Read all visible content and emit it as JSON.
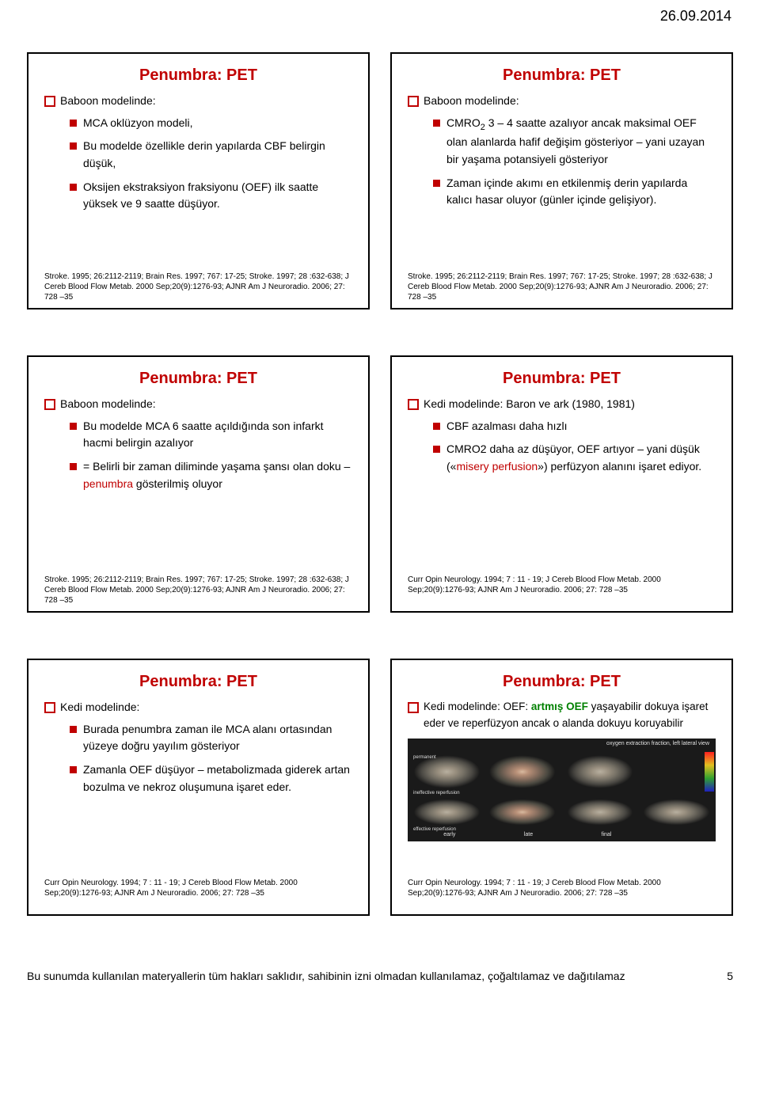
{
  "date": "26.09.2014",
  "slides": [
    {
      "title": "Penumbra: PET",
      "lvl1": "Baboon modelinde:",
      "lvl2": [
        "MCA oklüzyon modeli,",
        "Bu modelde özellikle derin yapılarda CBF belirgin düşük,",
        "Oksijen ekstraksiyon fraksiyonu (OEF) ilk saatte yüksek ve 9 saatte düşüyor."
      ],
      "ref": "Stroke. 1995; 26:2112-2119; Brain Res. 1997; 767: 17-25; Stroke. 1997; 28 :632-638; J Cereb Blood Flow Metab. 2000 Sep;20(9):1276-93; AJNR Am J Neuroradio. 2006; 27: 728 –35"
    },
    {
      "title": "Penumbra: PET",
      "lvl1": "Baboon modelinde:",
      "lvl2": [
        {
          "html": "CMRO<span class='sub'>2</span> 3 – 4 saatte azalıyor ancak maksimal OEF olan alanlarda hafif değişim gösteriyor – yani uzayan bir yaşama potansiyeli gösteriyor"
        },
        "Zaman içinde akımı en etkilenmiş derin yapılarda kalıcı hasar oluyor (günler içinde gelişiyor)."
      ],
      "ref": "Stroke. 1995; 26:2112-2119; Brain Res. 1997; 767: 17-25; Stroke. 1997; 28 :632-638; J Cereb Blood Flow Metab. 2000 Sep;20(9):1276-93; AJNR Am J Neuroradio. 2006; 27: 728 –35"
    },
    {
      "title": "Penumbra: PET",
      "lvl1": "Baboon modelinde:",
      "lvl2": [
        "Bu modelde MCA 6 saatte açıldığında son infarkt hacmi belirgin azalıyor",
        {
          "html": "= Belirli bir zaman diliminde yaşama şansı olan doku – <span class='penumbra'>penumbra</span> gösterilmiş oluyor"
        }
      ],
      "ref": "Stroke. 1995; 26:2112-2119; Brain Res. 1997; 767: 17-25; Stroke. 1997; 28 :632-638; J Cereb Blood Flow Metab. 2000 Sep;20(9):1276-93; AJNR Am J Neuroradio. 2006; 27: 728 –35"
    },
    {
      "title": "Penumbra: PET",
      "lvl1": "Kedi modelinde: Baron ve ark (1980, 1981)",
      "lvl2": [
        "CBF azalması daha hızlı",
        {
          "html": "CMRO2 daha az düşüyor, OEF artıyor – yani düşük («<span class='misery'>misery perfusion</span>») perfüzyon alanını işaret ediyor."
        }
      ],
      "ref": "Curr Opin Neurology. 1994; 7 : 11 - 19; J Cereb Blood Flow Metab. 2000 Sep;20(9):1276-93; AJNR Am J Neuroradio. 2006; 27: 728 –35"
    },
    {
      "title": "Penumbra: PET",
      "lvl1": "Kedi modelinde:",
      "lvl2": [
        "Burada penumbra zaman ile MCA alanı ortasından yüzeye doğru yayılım gösteriyor",
        "Zamanla OEF düşüyor – metabolizmada giderek artan bozulma ve nekroz oluşumuna işaret eder."
      ],
      "ref": "Curr Opin Neurology. 1994; 7 : 11 - 19; J Cereb Blood Flow Metab. 2000 Sep;20(9):1276-93; AJNR Am J Neuroradio. 2006; 27: 728 –35"
    },
    {
      "title": "Penumbra: PET",
      "lvl1_html": "Kedi modelinde: OEF: <span class='green-txt'>artmış OEF</span> yaşayabilir dokuya işaret eder ve reperfüzyon ancak o alanda dokuyu koruyabilir",
      "scan": {
        "top": "oxygen extraction fraction, left lateral view",
        "rows": [
          "permanent",
          "ineffective reperfusion",
          "effective reperfusion"
        ],
        "bottom": [
          "early",
          "late",
          "final"
        ]
      },
      "ref": "Curr Opin Neurology. 1994; 7 : 11 - 19; J Cereb Blood Flow Metab. 2000 Sep;20(9):1276-93; AJNR Am J Neuroradio. 2006; 27: 728 –35"
    }
  ],
  "footer": "Bu sunumda kullanılan materyallerin tüm hakları saklıdır, sahibinin izni olmadan kullanılamaz, çoğaltılamaz ve dağıtılamaz",
  "page_number": "5"
}
